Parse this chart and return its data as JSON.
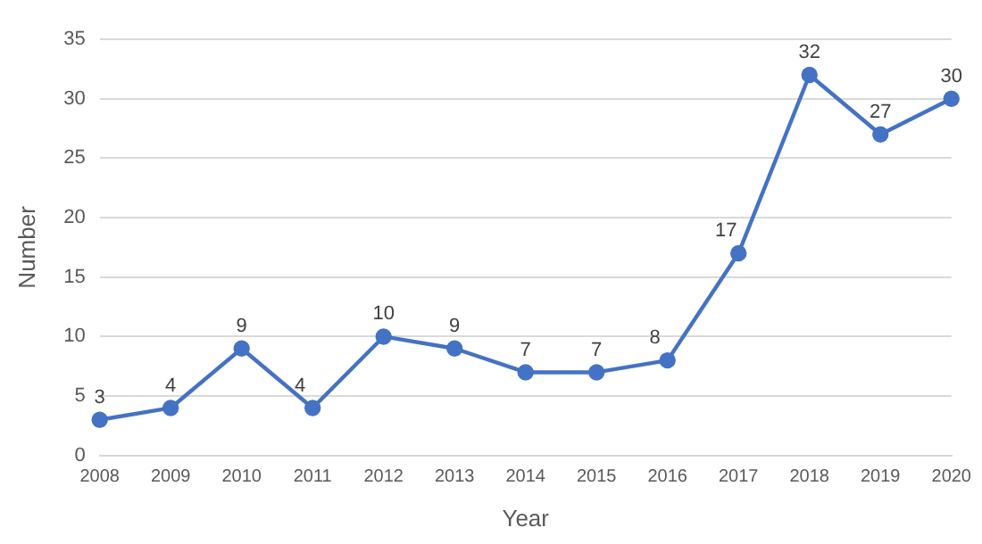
{
  "chart_data": {
    "type": "line",
    "xlabel": "Year",
    "ylabel": "Number",
    "categories": [
      "2008",
      "2009",
      "2010",
      "2011",
      "2012",
      "2013",
      "2014",
      "2015",
      "2016",
      "2017",
      "2018",
      "2019",
      "2020"
    ],
    "series": [
      {
        "color": "#4472c4",
        "values": [
          3,
          4,
          9,
          4,
          10,
          9,
          7,
          7,
          8,
          17,
          32,
          27,
          30
        ]
      }
    ],
    "ylim": [
      0,
      35
    ],
    "yticks": [
      0,
      5,
      10,
      15,
      20,
      25,
      30,
      35
    ],
    "grid": "y",
    "marker": "circle",
    "line_style": "solid",
    "data_labels": true,
    "legend": false
  }
}
